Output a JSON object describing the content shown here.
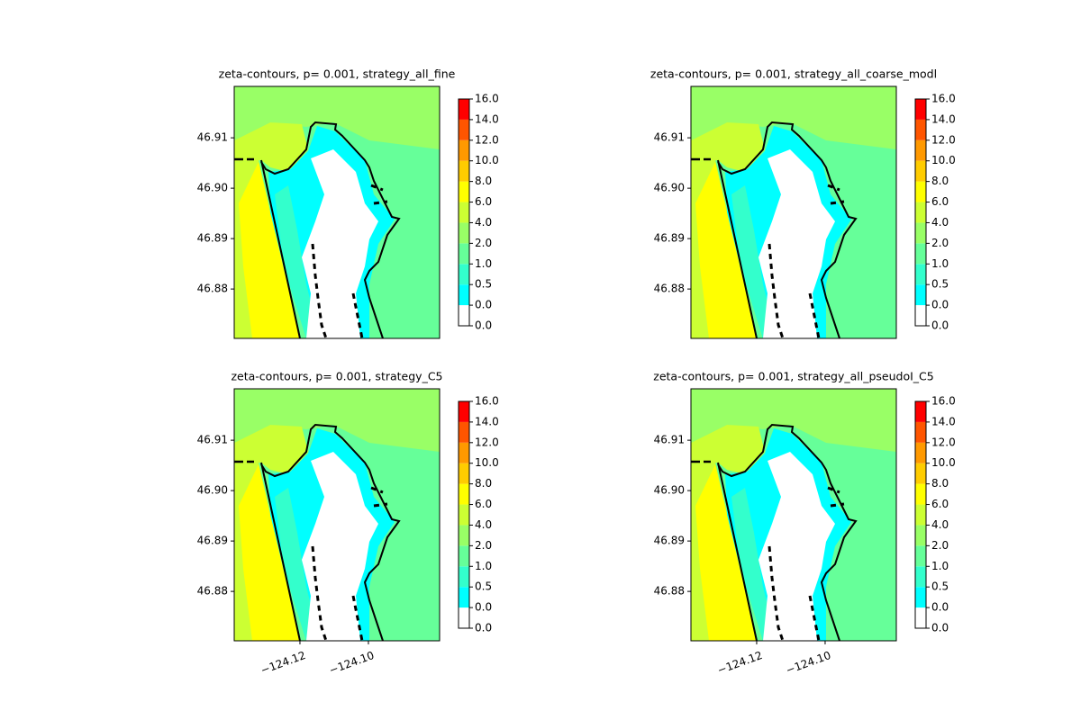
{
  "chart_data": [
    {
      "type": "contour",
      "title": "zeta-contours, p= 0.001, strategy_all_fine",
      "xlim": [
        -124.1392,
        -124.0792
      ],
      "ylim": [
        46.8702,
        46.9202
      ],
      "yticks": [
        46.88,
        46.89,
        {
          "value": 46.9,
          "label": "46.90"
        },
        46.91
      ],
      "levels": [
        {
          "value": 0,
          "label": "0.0"
        },
        {
          "value": 0.01,
          "label": "0.0"
        },
        0.5,
        {
          "value": 1,
          "label": "1.0"
        },
        {
          "value": 2,
          "label": "2.0"
        },
        {
          "value": 4,
          "label": "4.0"
        },
        {
          "value": 6,
          "label": "6.0"
        },
        {
          "value": 8,
          "label": "8.0"
        },
        {
          "value": 10,
          "label": "10.0"
        },
        {
          "value": 12,
          "label": "12.0"
        },
        {
          "value": 14,
          "label": "14.0"
        },
        {
          "value": 16,
          "label": "16.0"
        }
      ],
      "colors": [
        "#ffffff",
        "#00ffff",
        "#33ffcc",
        "#66ff99",
        "#99ff66",
        "#ccff33",
        "#ffff00",
        "#ffcc00",
        "#ff9900",
        "#ff5500",
        "#ff0000"
      ]
    },
    {
      "type": "contour",
      "title": "zeta-contours, p= 0.001, strategy_all_coarse_modl",
      "xlim": [
        -124.1392,
        -124.0792
      ],
      "ylim": [
        46.8702,
        46.9202
      ],
      "yticks": [
        46.88,
        46.89,
        {
          "value": 46.9,
          "label": "46.90"
        },
        46.91
      ],
      "levels": [
        {
          "value": 0,
          "label": "0.0"
        },
        {
          "value": 0.01,
          "label": "0.0"
        },
        0.5,
        {
          "value": 1,
          "label": "1.0"
        },
        {
          "value": 2,
          "label": "2.0"
        },
        {
          "value": 4,
          "label": "4.0"
        },
        {
          "value": 6,
          "label": "6.0"
        },
        {
          "value": 8,
          "label": "8.0"
        },
        {
          "value": 10,
          "label": "10.0"
        },
        {
          "value": 12,
          "label": "12.0"
        },
        {
          "value": 14,
          "label": "14.0"
        },
        {
          "value": 16,
          "label": "16.0"
        }
      ],
      "colors": [
        "#ffffff",
        "#00ffff",
        "#33ffcc",
        "#66ff99",
        "#99ff66",
        "#ccff33",
        "#ffff00",
        "#ffcc00",
        "#ff9900",
        "#ff5500",
        "#ff0000"
      ]
    },
    {
      "type": "contour",
      "title": "zeta-contours, p= 0.001, strategy_C5",
      "xlim": [
        -124.1392,
        -124.0792
      ],
      "ylim": [
        46.8702,
        46.9202
      ],
      "xticks": [
        {
          "value": -124.12,
          "label": "−124.12"
        },
        {
          "value": -124.1,
          "label": "−124.10"
        }
      ],
      "yticks": [
        46.88,
        46.89,
        {
          "value": 46.9,
          "label": "46.90"
        },
        46.91
      ],
      "levels": [
        {
          "value": 0,
          "label": "0.0"
        },
        {
          "value": 0.01,
          "label": "0.0"
        },
        0.5,
        {
          "value": 1,
          "label": "1.0"
        },
        {
          "value": 2,
          "label": "2.0"
        },
        {
          "value": 4,
          "label": "4.0"
        },
        {
          "value": 6,
          "label": "6.0"
        },
        {
          "value": 8,
          "label": "8.0"
        },
        {
          "value": 10,
          "label": "10.0"
        },
        {
          "value": 12,
          "label": "12.0"
        },
        {
          "value": 14,
          "label": "14.0"
        },
        {
          "value": 16,
          "label": "16.0"
        }
      ],
      "colors": [
        "#ffffff",
        "#00ffff",
        "#33ffcc",
        "#66ff99",
        "#99ff66",
        "#ccff33",
        "#ffff00",
        "#ffcc00",
        "#ff9900",
        "#ff5500",
        "#ff0000"
      ]
    },
    {
      "type": "contour",
      "title": "zeta-contours, p= 0.001, strategy_all_pseudoI_C5",
      "xlim": [
        -124.1392,
        -124.0792
      ],
      "ylim": [
        46.8702,
        46.9202
      ],
      "xticks": [
        {
          "value": -124.12,
          "label": "−124.12"
        },
        {
          "value": -124.1,
          "label": "−124.10"
        }
      ],
      "yticks": [
        46.88,
        46.89,
        {
          "value": 46.9,
          "label": "46.90"
        },
        46.91
      ],
      "levels": [
        {
          "value": 0,
          "label": "0.0"
        },
        {
          "value": 0.01,
          "label": "0.0"
        },
        0.5,
        {
          "value": 1,
          "label": "1.0"
        },
        {
          "value": 2,
          "label": "2.0"
        },
        {
          "value": 4,
          "label": "4.0"
        },
        {
          "value": 6,
          "label": "6.0"
        },
        {
          "value": 8,
          "label": "8.0"
        },
        {
          "value": 10,
          "label": "10.0"
        },
        {
          "value": 12,
          "label": "12.0"
        },
        {
          "value": 14,
          "label": "14.0"
        },
        {
          "value": 16,
          "label": "16.0"
        }
      ],
      "colors": [
        "#ffffff",
        "#00ffff",
        "#33ffcc",
        "#66ff99",
        "#99ff66",
        "#ccff33",
        "#ffff00",
        "#ffcc00",
        "#ff9900",
        "#ff5500",
        "#ff0000"
      ]
    }
  ]
}
